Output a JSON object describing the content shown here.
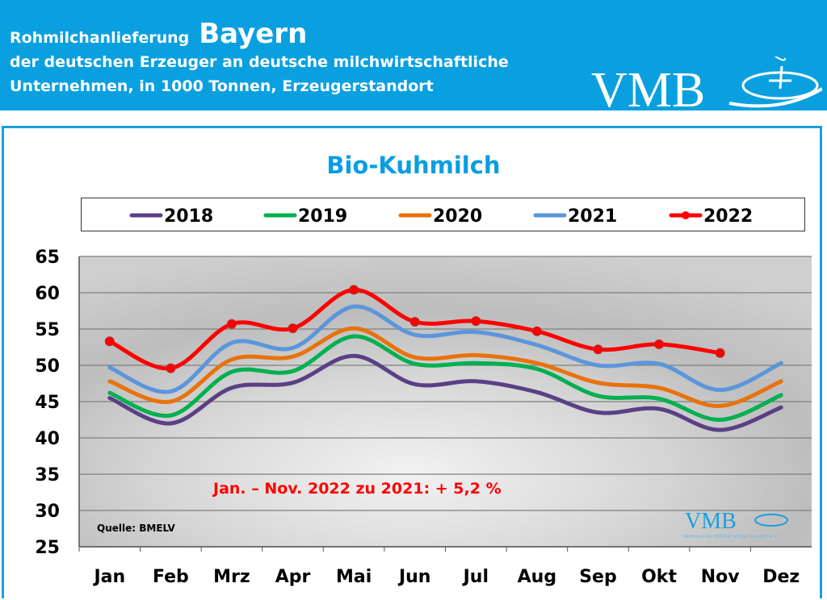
{
  "header": {
    "title_prefix": "Rohmilchanlieferung",
    "title_region": "Bayern",
    "subtitle_line1": "der deutschen Erzeuger an deutsche milchwirtschaftliche",
    "subtitle_line2": "Unternehmen, in 1000 Tonnen, Erzeugerstandort",
    "logo_text": "VMB",
    "background_color": "#0aa0e0"
  },
  "footer_logo": {
    "text": "VMB",
    "tagline": "Verband der Milcherzeuger Bayern e.V."
  },
  "chart_data": {
    "type": "line",
    "title": "Bio-Kuhmilch",
    "categories": [
      "Jan",
      "Feb",
      "Mrz",
      "Apr",
      "Mai",
      "Jun",
      "Jul",
      "Aug",
      "Sep",
      "Okt",
      "Nov",
      "Dez"
    ],
    "ylim": [
      25,
      65
    ],
    "yticks": [
      65,
      60,
      55,
      50,
      45,
      40,
      35,
      30,
      25
    ],
    "grid": true,
    "legend_placement": "top",
    "annotation": "Jan. – Nov. 2022 zu 2021: + 5,2 %",
    "source": "Quelle: BMELV",
    "series": [
      {
        "name": "2018",
        "color": "#5b3f86",
        "markers": false,
        "values": [
          45.5,
          42.0,
          46.9,
          47.6,
          51.3,
          47.4,
          47.8,
          46.3,
          43.5,
          44.0,
          41.1,
          44.2
        ]
      },
      {
        "name": "2019",
        "color": "#00b050",
        "markers": false,
        "values": [
          46.2,
          43.1,
          49.1,
          49.2,
          54.0,
          50.2,
          50.3,
          49.5,
          45.8,
          45.4,
          42.5,
          45.9
        ]
      },
      {
        "name": "2020",
        "color": "#e8720c",
        "markers": false,
        "values": [
          47.8,
          45.0,
          50.8,
          51.2,
          55.1,
          51.1,
          51.4,
          50.3,
          47.6,
          46.9,
          44.4,
          47.8
        ]
      },
      {
        "name": "2021",
        "color": "#5b96db",
        "markers": false,
        "values": [
          49.7,
          46.4,
          53.1,
          52.4,
          58.1,
          54.2,
          54.6,
          52.8,
          50.0,
          50.2,
          46.6,
          50.3
        ]
      },
      {
        "name": "2022",
        "color": "#ff0000",
        "markers": true,
        "values": [
          53.3,
          49.6,
          55.7,
          55.1,
          60.4,
          56.0,
          56.1,
          54.7,
          52.2,
          52.9,
          51.7,
          null
        ]
      }
    ]
  }
}
